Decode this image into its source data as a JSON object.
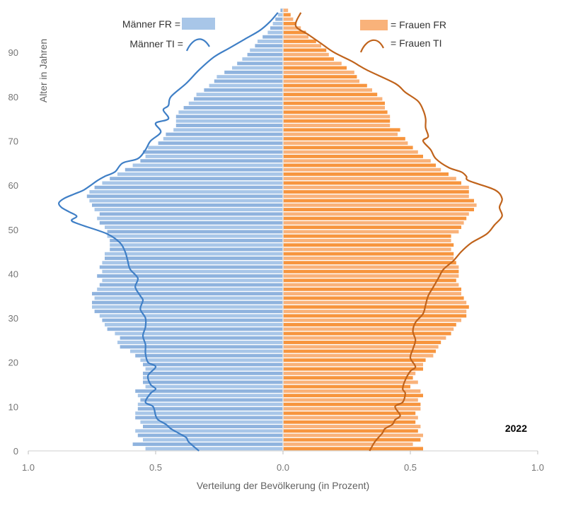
{
  "chart_data": {
    "type": "bar",
    "orientation": "horizontal",
    "xlabel": "Verteilung der Bevölkerung (in Prozent)",
    "ylabel": "Alter in Jahren",
    "year_label": "2022",
    "xlim": [
      -1.0,
      1.0
    ],
    "ylim": [
      0,
      100
    ],
    "x_ticks": [
      -1.0,
      -0.5,
      0.0,
      0.5,
      1.0
    ],
    "x_tick_labels": [
      "1.0",
      "0.5",
      "0.0",
      "0.5",
      "1.0"
    ],
    "y_ticks": [
      0,
      10,
      20,
      30,
      40,
      50,
      60,
      70,
      80,
      90
    ],
    "y_tick_labels": [
      "0",
      "10",
      "20",
      "30",
      "40",
      "50",
      "60",
      "70",
      "80",
      "90"
    ],
    "ages": [
      0,
      1,
      2,
      3,
      4,
      5,
      6,
      7,
      8,
      9,
      10,
      11,
      12,
      13,
      14,
      15,
      16,
      17,
      18,
      19,
      20,
      21,
      22,
      23,
      24,
      25,
      26,
      27,
      28,
      29,
      30,
      31,
      32,
      33,
      34,
      35,
      36,
      37,
      38,
      39,
      40,
      41,
      42,
      43,
      44,
      45,
      46,
      47,
      48,
      49,
      50,
      51,
      52,
      53,
      54,
      55,
      56,
      57,
      58,
      59,
      60,
      61,
      62,
      63,
      64,
      65,
      66,
      67,
      68,
      69,
      70,
      71,
      72,
      73,
      74,
      75,
      76,
      77,
      78,
      79,
      80,
      81,
      82,
      83,
      84,
      85,
      86,
      87,
      88,
      89,
      90,
      91,
      92,
      93,
      94,
      95,
      96,
      97,
      98,
      99
    ],
    "series": [
      {
        "name": "Männer FR",
        "kind": "bars",
        "side": "left",
        "color": "#a8c6e8",
        "values": [
          0.54,
          0.59,
          0.55,
          0.57,
          0.58,
          0.55,
          0.56,
          0.58,
          0.58,
          0.57,
          0.57,
          0.56,
          0.57,
          0.58,
          0.54,
          0.55,
          0.55,
          0.55,
          0.54,
          0.55,
          0.56,
          0.58,
          0.6,
          0.64,
          0.65,
          0.64,
          0.66,
          0.69,
          0.7,
          0.71,
          0.72,
          0.74,
          0.75,
          0.75,
          0.74,
          0.75,
          0.73,
          0.72,
          0.71,
          0.73,
          0.71,
          0.72,
          0.71,
          0.7,
          0.7,
          0.68,
          0.68,
          0.68,
          0.69,
          0.69,
          0.7,
          0.72,
          0.73,
          0.72,
          0.74,
          0.75,
          0.76,
          0.77,
          0.76,
          0.74,
          0.71,
          0.68,
          0.65,
          0.62,
          0.59,
          0.56,
          0.54,
          0.55,
          0.53,
          0.49,
          0.47,
          0.46,
          0.43,
          0.42,
          0.42,
          0.42,
          0.41,
          0.39,
          0.37,
          0.35,
          0.34,
          0.31,
          0.29,
          0.27,
          0.26,
          0.23,
          0.2,
          0.18,
          0.16,
          0.14,
          0.13,
          0.11,
          0.1,
          0.08,
          0.06,
          0.05,
          0.04,
          0.03,
          0.02,
          0.01
        ]
      },
      {
        "name": "Frauen FR",
        "kind": "bars",
        "side": "right",
        "color": "#f7953e",
        "values": [
          0.55,
          0.51,
          0.54,
          0.55,
          0.53,
          0.54,
          0.52,
          0.53,
          0.52,
          0.54,
          0.54,
          0.53,
          0.55,
          0.54,
          0.5,
          0.53,
          0.51,
          0.52,
          0.55,
          0.55,
          0.56,
          0.59,
          0.6,
          0.61,
          0.62,
          0.64,
          0.66,
          0.67,
          0.68,
          0.7,
          0.72,
          0.72,
          0.73,
          0.72,
          0.71,
          0.7,
          0.7,
          0.69,
          0.68,
          0.69,
          0.69,
          0.69,
          0.68,
          0.67,
          0.67,
          0.66,
          0.67,
          0.66,
          0.66,
          0.69,
          0.7,
          0.71,
          0.72,
          0.73,
          0.75,
          0.76,
          0.75,
          0.73,
          0.73,
          0.73,
          0.7,
          0.68,
          0.65,
          0.62,
          0.6,
          0.58,
          0.55,
          0.53,
          0.51,
          0.49,
          0.48,
          0.45,
          0.46,
          0.42,
          0.42,
          0.42,
          0.41,
          0.4,
          0.4,
          0.39,
          0.37,
          0.35,
          0.33,
          0.3,
          0.29,
          0.28,
          0.25,
          0.23,
          0.2,
          0.18,
          0.17,
          0.15,
          0.13,
          0.1,
          0.09,
          0.07,
          0.05,
          0.04,
          0.03,
          0.02
        ]
      },
      {
        "name": "Männer TI",
        "kind": "line",
        "side": "left",
        "color": "#3f7fc6",
        "points": [
          [
            -0.33,
            0
          ],
          [
            -0.37,
            2
          ],
          [
            -0.38,
            3
          ],
          [
            -0.41,
            4
          ],
          [
            -0.44,
            5
          ],
          [
            -0.46,
            6
          ],
          [
            -0.49,
            7
          ],
          [
            -0.5,
            8
          ],
          [
            -0.51,
            10
          ],
          [
            -0.54,
            11
          ],
          [
            -0.52,
            13
          ],
          [
            -0.5,
            14
          ],
          [
            -0.52,
            15
          ],
          [
            -0.53,
            17
          ],
          [
            -0.5,
            19
          ],
          [
            -0.53,
            20
          ],
          [
            -0.54,
            22
          ],
          [
            -0.54,
            24
          ],
          [
            -0.55,
            26
          ],
          [
            -0.54,
            28
          ],
          [
            -0.54,
            30
          ],
          [
            -0.56,
            32
          ],
          [
            -0.55,
            34
          ],
          [
            -0.56,
            35
          ],
          [
            -0.58,
            37
          ],
          [
            -0.57,
            39
          ],
          [
            -0.6,
            41
          ],
          [
            -0.61,
            43
          ],
          [
            -0.62,
            45
          ],
          [
            -0.64,
            47
          ],
          [
            -0.69,
            49
          ],
          [
            -0.79,
            51
          ],
          [
            -0.83,
            52
          ],
          [
            -0.81,
            53
          ],
          [
            -0.84,
            54
          ],
          [
            -0.87,
            55
          ],
          [
            -0.88,
            56
          ],
          [
            -0.86,
            57
          ],
          [
            -0.82,
            58
          ],
          [
            -0.78,
            59
          ],
          [
            -0.73,
            61
          ],
          [
            -0.7,
            62
          ],
          [
            -0.66,
            63
          ],
          [
            -0.63,
            65
          ],
          [
            -0.57,
            66
          ],
          [
            -0.54,
            68
          ],
          [
            -0.52,
            70
          ],
          [
            -0.48,
            72
          ],
          [
            -0.5,
            74
          ],
          [
            -0.45,
            75
          ],
          [
            -0.47,
            77
          ],
          [
            -0.45,
            78
          ],
          [
            -0.44,
            80
          ],
          [
            -0.38,
            83
          ],
          [
            -0.33,
            86
          ],
          [
            -0.27,
            89
          ],
          [
            -0.21,
            91
          ],
          [
            -0.15,
            93
          ],
          [
            -0.09,
            95
          ],
          [
            -0.05,
            97
          ],
          [
            -0.02,
            99
          ]
        ]
      },
      {
        "name": "Frauen TI",
        "kind": "line",
        "side": "right",
        "color": "#c0631b",
        "points": [
          [
            0.34,
            0
          ],
          [
            0.36,
            2
          ],
          [
            0.39,
            4
          ],
          [
            0.4,
            5
          ],
          [
            0.43,
            6
          ],
          [
            0.44,
            7
          ],
          [
            0.46,
            8
          ],
          [
            0.44,
            10
          ],
          [
            0.47,
            11
          ],
          [
            0.48,
            13
          ],
          [
            0.47,
            14
          ],
          [
            0.48,
            16
          ],
          [
            0.5,
            18
          ],
          [
            0.52,
            19
          ],
          [
            0.5,
            21
          ],
          [
            0.51,
            23
          ],
          [
            0.52,
            25
          ],
          [
            0.51,
            27
          ],
          [
            0.52,
            29
          ],
          [
            0.55,
            31
          ],
          [
            0.56,
            33
          ],
          [
            0.57,
            35
          ],
          [
            0.59,
            37
          ],
          [
            0.61,
            39
          ],
          [
            0.63,
            41
          ],
          [
            0.67,
            43
          ],
          [
            0.7,
            45
          ],
          [
            0.74,
            47
          ],
          [
            0.8,
            49
          ],
          [
            0.83,
            51
          ],
          [
            0.86,
            53
          ],
          [
            0.85,
            55
          ],
          [
            0.86,
            57
          ],
          [
            0.83,
            59
          ],
          [
            0.73,
            61
          ],
          [
            0.72,
            62
          ],
          [
            0.7,
            63
          ],
          [
            0.65,
            64
          ],
          [
            0.6,
            66
          ],
          [
            0.58,
            68
          ],
          [
            0.55,
            70
          ],
          [
            0.57,
            71
          ],
          [
            0.56,
            73
          ],
          [
            0.56,
            75
          ],
          [
            0.55,
            77
          ],
          [
            0.53,
            79
          ],
          [
            0.48,
            81
          ],
          [
            0.44,
            83
          ],
          [
            0.33,
            86
          ],
          [
            0.27,
            88
          ],
          [
            0.2,
            90
          ],
          [
            0.15,
            92
          ],
          [
            0.1,
            94
          ],
          [
            0.05,
            96
          ],
          [
            0.07,
            99
          ]
        ]
      }
    ],
    "legend": {
      "placement": "top",
      "entries": [
        {
          "label": "Männer FR =",
          "series": 0
        },
        {
          "label": "Männer  TI =",
          "series": 2
        },
        {
          "label": "= Frauen FR",
          "series": 1
        },
        {
          "label": "= Frauen TI",
          "series": 3
        }
      ]
    },
    "grid": false
  }
}
